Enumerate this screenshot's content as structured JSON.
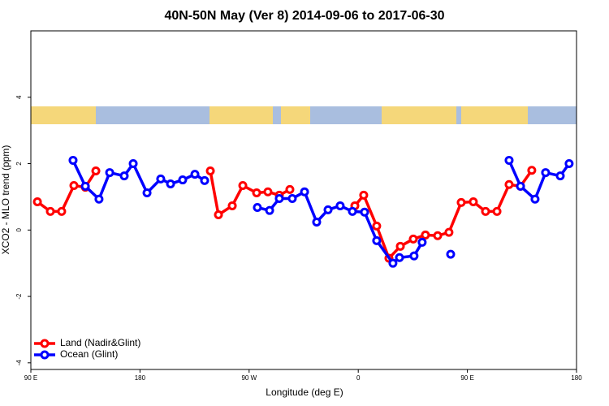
{
  "chart_data": {
    "type": "line",
    "title": "40N-50N May (Ver 8)   2014-09-06 to 2017-06-30",
    "x_label": "Longitude (deg E)",
    "y_label": "XCO2 - MLO trend (ppm)",
    "xlim": [
      90,
      540
    ],
    "ylim": [
      -4.2,
      6
    ],
    "xticks": [
      {
        "value": 90,
        "label": "90 E"
      },
      {
        "value": 180,
        "label": "180"
      },
      {
        "value": 270,
        "label": "90 W"
      },
      {
        "value": 360,
        "label": "0"
      },
      {
        "value": 450,
        "label": "90 E"
      },
      {
        "value": 540,
        "label": "180"
      }
    ],
    "yticks": [
      -4,
      -2,
      0,
      2,
      4
    ],
    "legend": "bottom-left",
    "series": [
      {
        "name": "Land (Nadir&Glint)",
        "color": "#ff0000",
        "x": [
          95.4,
          106.1,
          115.4,
          125.5,
          134.9,
          143.6,
          null,
          238,
          244.7,
          256.1,
          264.8,
          276.2,
          285.5,
          294.9,
          303.6,
          null,
          357.2,
          364.5,
          375.2,
          385.3,
          394.7,
          405.4,
          415.4,
          425.5,
          434.8,
          444.9,
          454.9,
          465,
          474.4,
          484.4,
          493.8,
          503.1
        ],
        "values": [
          0.85,
          0.56,
          0.56,
          1.34,
          1.29,
          1.78,
          null,
          1.78,
          0.46,
          0.73,
          1.34,
          1.12,
          1.15,
          1.05,
          1.22,
          null,
          0.73,
          1.05,
          0.12,
          -0.85,
          -0.49,
          -0.27,
          -0.15,
          -0.17,
          -0.07,
          0.83,
          0.85,
          0.56,
          0.56,
          1.37,
          1.32,
          1.8
        ]
      },
      {
        "name": "Ocean (Glint)",
        "color": "#0000ff",
        "x": [
          124.8,
          134.9,
          146.2,
          155,
          167,
          174.4,
          185.8,
          197.1,
          205.2,
          215.2,
          225.3,
          233.3,
          null,
          276.8,
          286.9,
          294.9,
          305.6,
          315.7,
          325.7,
          335.1,
          345.1,
          355.2,
          365.2,
          375.2,
          388.6,
          394,
          406,
          412.7,
          null,
          436.2,
          null,
          484.4,
          493.8,
          505.8,
          514.5,
          526.6,
          533.9
        ],
        "values": [
          2.1,
          1.32,
          0.93,
          1.73,
          1.63,
          2.0,
          1.12,
          1.54,
          1.39,
          1.51,
          1.68,
          1.49,
          null,
          0.68,
          0.59,
          0.95,
          0.95,
          1.15,
          0.24,
          0.61,
          0.73,
          0.56,
          0.54,
          -0.32,
          -1.0,
          -0.83,
          -0.78,
          -0.37,
          null,
          -0.73,
          null,
          2.1,
          1.32,
          0.93,
          1.73,
          1.63,
          2.0
        ]
      }
    ]
  }
}
